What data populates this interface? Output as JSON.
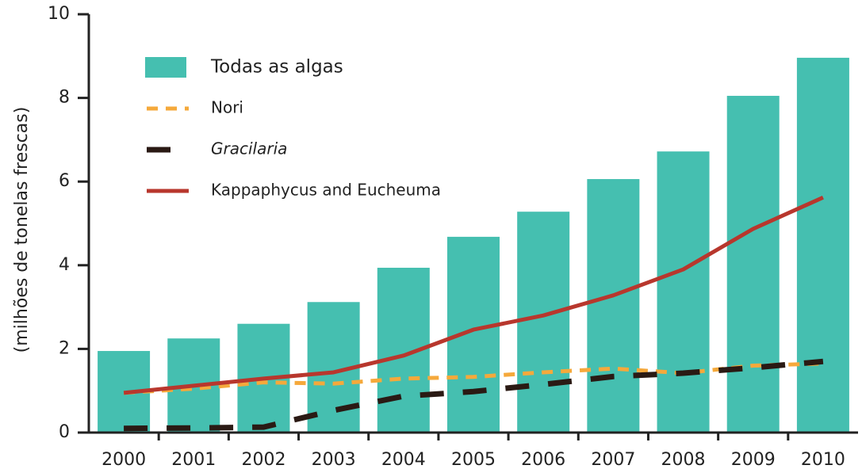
{
  "chart_data": {
    "type": "bar",
    "y_label": "(milhões de tonelas frescas)",
    "categories": [
      "2000",
      "2001",
      "2002",
      "2003",
      "2004",
      "2005",
      "2006",
      "2007",
      "2008",
      "2009",
      "2010"
    ],
    "ylim": [
      0,
      10
    ],
    "yticks": [
      0,
      2,
      4,
      6,
      8,
      10
    ],
    "legend": "top-left",
    "series": [
      {
        "name": "Todas as algas",
        "type": "bar",
        "color": "#45bfb0",
        "values": [
          1.95,
          2.25,
          2.6,
          3.12,
          3.94,
          4.68,
          5.28,
          6.06,
          6.72,
          8.05,
          8.96
        ]
      },
      {
        "name": "Nori",
        "type": "line",
        "style": "dotted",
        "color": "#f5a93b",
        "values": [
          0.95,
          1.05,
          1.2,
          1.17,
          1.29,
          1.33,
          1.44,
          1.53,
          1.42,
          1.6,
          1.65
        ]
      },
      {
        "name": "Gracilaria",
        "type": "line",
        "style": "dashed",
        "italic": true,
        "color": "#2a1a14",
        "values": [
          0.1,
          0.11,
          0.13,
          0.53,
          0.87,
          0.98,
          1.15,
          1.34,
          1.42,
          1.55,
          1.7
        ]
      },
      {
        "name": "Kappaphycus and Eucheuma",
        "type": "line",
        "style": "solid",
        "color": "#b8372d",
        "values": [
          0.95,
          1.12,
          1.29,
          1.44,
          1.84,
          2.46,
          2.8,
          3.28,
          3.9,
          4.87,
          5.62
        ]
      }
    ]
  }
}
